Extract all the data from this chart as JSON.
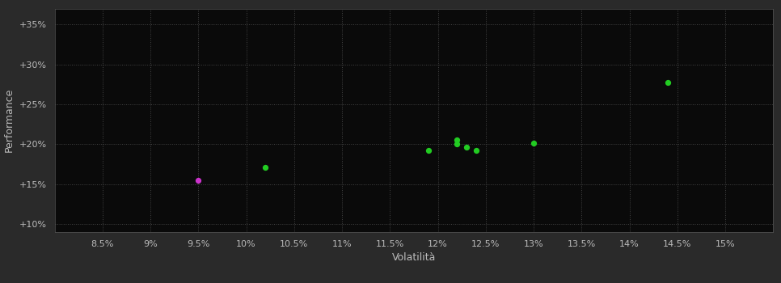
{
  "xlabel": "Volatilità",
  "ylabel": "Performance",
  "outer_background": "#2a2a2a",
  "plot_background": "#0a0a0a",
  "grid_color": "#444444",
  "text_color": "#bbbbbb",
  "spine_color": "#555555",
  "xlim": [
    0.08,
    0.155
  ],
  "ylim": [
    0.09,
    0.37
  ],
  "xticks": [
    0.085,
    0.09,
    0.095,
    0.1,
    0.105,
    0.11,
    0.115,
    0.12,
    0.125,
    0.13,
    0.135,
    0.14,
    0.145,
    0.15
  ],
  "yticks": [
    0.1,
    0.15,
    0.2,
    0.25,
    0.3,
    0.35
  ],
  "points_green": [
    [
      0.102,
      0.171
    ],
    [
      0.119,
      0.192
    ],
    [
      0.122,
      0.205
    ],
    [
      0.122,
      0.2
    ],
    [
      0.123,
      0.196
    ],
    [
      0.124,
      0.192
    ],
    [
      0.13,
      0.201
    ],
    [
      0.144,
      0.277
    ]
  ],
  "points_magenta": [
    [
      0.095,
      0.155
    ]
  ],
  "point_color_green": "#22cc22",
  "point_color_magenta": "#cc33cc",
  "point_size": 18,
  "figsize": [
    9.66,
    3.5
  ],
  "dpi": 100,
  "tick_fontsize": 8,
  "label_fontsize": 9
}
